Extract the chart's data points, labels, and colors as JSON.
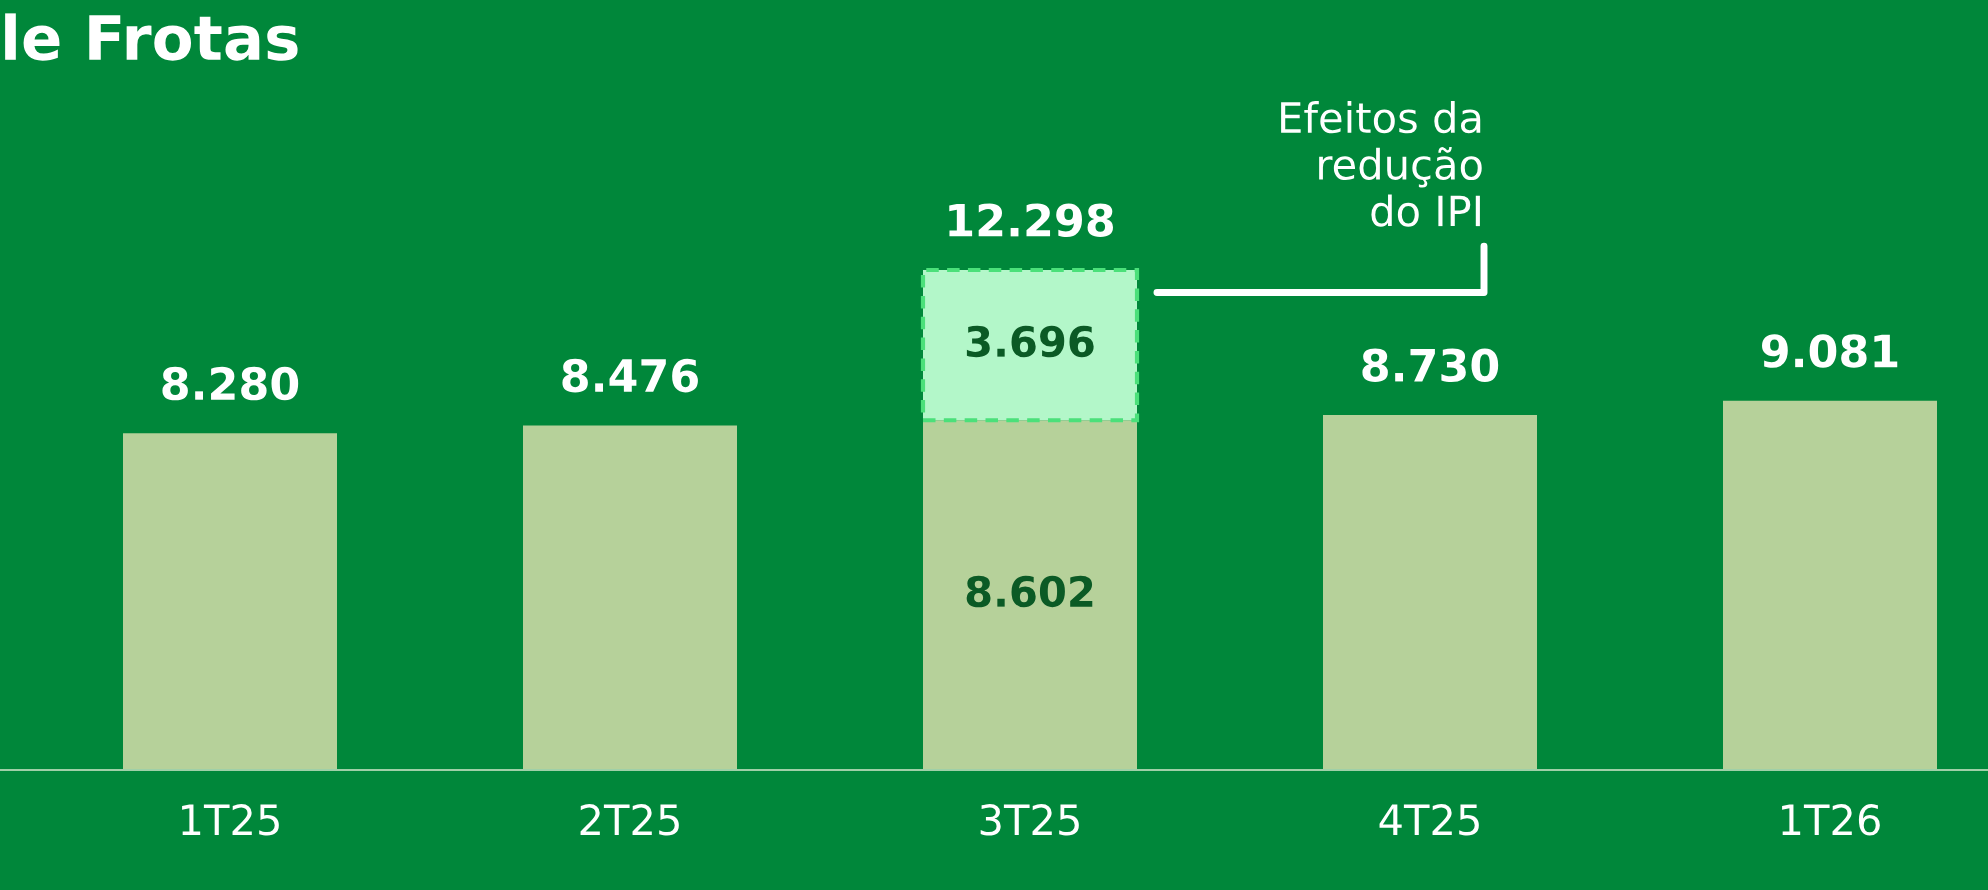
{
  "chart_data": {
    "type": "bar",
    "title": "le Frotas",
    "stacked": true,
    "categories": [
      "1T25",
      "2T25",
      "3T25",
      "4T25",
      "1T26"
    ],
    "series": [
      {
        "color": "#b6d19a",
        "values": [
          8280,
          8476,
          8602,
          8730,
          9081
        ],
        "value_labels": [
          "8.280",
          "8.476",
          "8.602",
          "8.730",
          "9.081"
        ]
      },
      {
        "color": "#b3f7c9",
        "values": [
          null,
          null,
          3696,
          null,
          null
        ],
        "value_labels": [
          null,
          null,
          "3.696",
          null,
          null
        ]
      }
    ],
    "totals": [
      null,
      null,
      "12.298",
      null,
      null
    ],
    "annotations": [
      "Efeitos da\nredução\ndo IPI"
    ],
    "legend": false,
    "grid": false
  }
}
